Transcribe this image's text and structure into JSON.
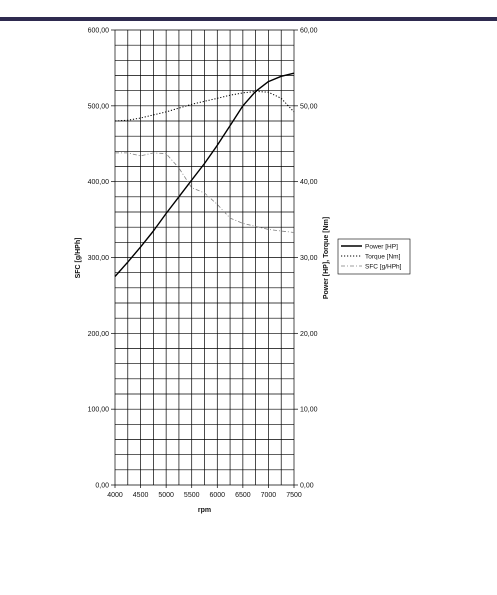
{
  "colors": {
    "header_rule": "#2e2a4f",
    "grid": "#000000",
    "series_line": "#000000",
    "sfc_line": "#7f7f7f"
  },
  "chart_data": {
    "type": "line",
    "title": "",
    "xlabel": "rpm",
    "ylabel_left": "SFC [g/HPh]",
    "ylabel_right": "Power [HP], Torque [Nm]",
    "xlim": [
      4000,
      7500
    ],
    "ylim_left": [
      0,
      600
    ],
    "ylim_right": [
      0,
      60
    ],
    "x_ticks": [
      "4000",
      "4500",
      "5000",
      "5500",
      "6000",
      "6500",
      "7000",
      "7500"
    ],
    "y_ticks_left": [
      "0,00",
      "100,00",
      "200,00",
      "300,00",
      "400,00",
      "500,00",
      "600,00"
    ],
    "y_ticks_right": [
      "0,00",
      "10,00",
      "20,00",
      "30,00",
      "40,00",
      "50,00",
      "60,00"
    ],
    "grid": true,
    "legend_position": "right",
    "series": [
      {
        "name": "Power [HP]",
        "axis": "right",
        "style": "solid",
        "x": [
          4000,
          4250,
          4500,
          4750,
          5000,
          5250,
          5500,
          5750,
          6000,
          6250,
          6500,
          6750,
          7000,
          7250,
          7500
        ],
        "values": [
          27.5,
          29.4,
          31.4,
          33.5,
          35.8,
          38.0,
          40.2,
          42.4,
          44.8,
          47.4,
          50.0,
          51.9,
          53.2,
          53.9,
          54.3
        ]
      },
      {
        "name": "Torque [Nm]",
        "axis": "right",
        "style": "dotted",
        "x": [
          4000,
          4250,
          4500,
          4750,
          5000,
          5250,
          5500,
          5750,
          6000,
          6250,
          6500,
          6750,
          7000,
          7250,
          7500
        ],
        "values": [
          48.0,
          48.1,
          48.4,
          48.8,
          49.2,
          49.7,
          50.2,
          50.6,
          51.0,
          51.4,
          51.7,
          51.9,
          51.8,
          51.0,
          49.2
        ]
      },
      {
        "name": "SFC [g/HPh]",
        "axis": "left",
        "style": "dashdot",
        "x": [
          4000,
          4250,
          4500,
          4750,
          5000,
          5250,
          5500,
          5750,
          6000,
          6250,
          6500,
          6750,
          7000,
          7250,
          7500
        ],
        "values": [
          438,
          438,
          434,
          438,
          437,
          418,
          392,
          385,
          370,
          352,
          345,
          341,
          337,
          335,
          333
        ]
      }
    ]
  }
}
